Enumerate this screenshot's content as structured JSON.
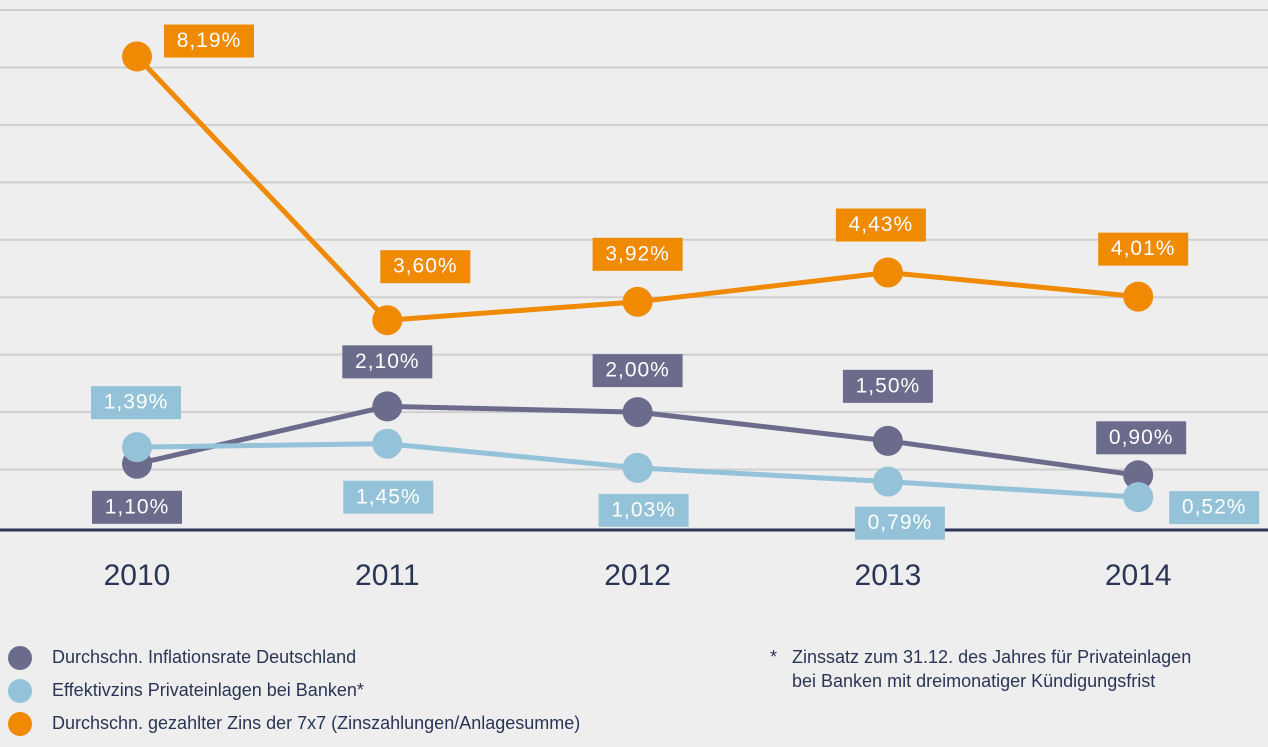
{
  "chart_data": {
    "type": "line",
    "categories": [
      "2010",
      "2011",
      "2012",
      "2013",
      "2014"
    ],
    "ylim": [
      0,
      9
    ],
    "yticks": [
      0,
      1,
      2,
      3,
      4,
      5,
      6,
      7,
      8,
      9
    ],
    "grid": true,
    "series": [
      {
        "name": "Durchschn. Inflationsrate Deutschland",
        "color": "#6b6b8c",
        "values": [
          1.1,
          2.1,
          2.0,
          1.5,
          0.9
        ],
        "value_labels": [
          "1,10%",
          "2,10%",
          "2,00%",
          "1,50%",
          "0,90%"
        ]
      },
      {
        "name": "Effektivzins Privateinlagen bei Banken*",
        "color": "#94c3d9",
        "values": [
          1.39,
          1.45,
          1.03,
          0.79,
          0.52
        ],
        "value_labels": [
          "1,39%",
          "1,45%",
          "1,03%",
          "0,79%",
          "0,52%"
        ]
      },
      {
        "name": "Durchschn. gezahlter Zins der 7x7 (Zinszahlungen/Anlagesumme)",
        "color": "#f08a00",
        "values": [
          8.19,
          3.6,
          3.92,
          4.43,
          4.01
        ],
        "value_labels": [
          "8,19%",
          "3,60%",
          "3,92%",
          "4,43%",
          "4,01%"
        ]
      }
    ],
    "footnote_marker": "*",
    "footnote": [
      "Zinssatz zum 31.12. des Jahres für Privateinlagen",
      "bei Banken mit dreimonatiger Kündigungsfrist"
    ]
  }
}
